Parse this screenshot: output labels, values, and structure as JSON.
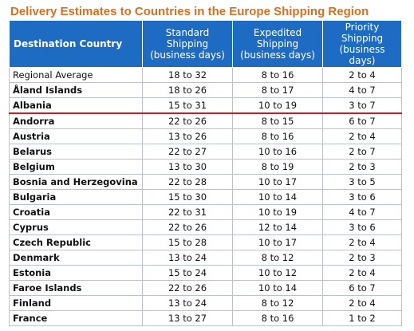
{
  "title": "Delivery Estimates to Countries in the Europe Shipping Region",
  "headers": {
    "country": "Destination Country",
    "standard": "Standard Shipping (business days)",
    "expedited": "Expedited Shipping (business days)",
    "priority": "Priority Shipping (business days)"
  },
  "rows": [
    {
      "country": "Regional Average",
      "standard": "18 to 32",
      "expedited": "8 to 16",
      "priority": "2 to 4"
    },
    {
      "country": "Åland Islands",
      "standard": "18 to 26",
      "expedited": "8 to 17",
      "priority": "4 to 7"
    },
    {
      "country": "Albania",
      "standard": "15 to 31",
      "expedited": "10 to 19",
      "priority": "3 to 7"
    },
    {
      "country": "Andorra",
      "standard": "22 to 26",
      "expedited": "8 to 15",
      "priority": "6 to 7"
    },
    {
      "country": "Austria",
      "standard": "13 to 26",
      "expedited": "8 to 16",
      "priority": "2 to 4"
    },
    {
      "country": "Belarus",
      "standard": "22 to 27",
      "expedited": "10 to 16",
      "priority": "2 to 7"
    },
    {
      "country": "Belgium",
      "standard": "13 to 30",
      "expedited": "8 to 19",
      "priority": "2 to 3"
    },
    {
      "country": "Bosnia and Herzegovina",
      "standard": "22 to 28",
      "expedited": "10 to 17",
      "priority": "3 to 5"
    },
    {
      "country": "Bulgaria",
      "standard": "15 to 30",
      "expedited": "10 to 14",
      "priority": "3 to 6"
    },
    {
      "country": "Croatia",
      "standard": "22 to 31",
      "expedited": "10 to 19",
      "priority": "4 to 7"
    },
    {
      "country": "Cyprus",
      "standard": "22 to 26",
      "expedited": "12 to 14",
      "priority": "3 to 6"
    },
    {
      "country": "Czech Republic",
      "standard": "15 to 28",
      "expedited": "10 to 17",
      "priority": "2 to 4"
    },
    {
      "country": "Denmark",
      "standard": "13 to 24",
      "expedited": "8 to 12",
      "priority": "2 to 3"
    },
    {
      "country": "Estonia",
      "standard": "15 to 24",
      "expedited": "10 to 12",
      "priority": "2 to 4"
    },
    {
      "country": "Faroe Islands",
      "standard": "22 to 26",
      "expedited": "10 to 14",
      "priority": "6 to 7"
    },
    {
      "country": "Finland",
      "standard": "13 to 24",
      "expedited": "8 to 12",
      "priority": "2 to 4"
    },
    {
      "country": "France",
      "standard": "13 to 27",
      "expedited": "8 to 16",
      "priority": "1 to 2"
    }
  ],
  "colors": {
    "title": "#d96f1e",
    "header_bg": "#1e6bc4",
    "highlight_line": "#c61b2a"
  }
}
